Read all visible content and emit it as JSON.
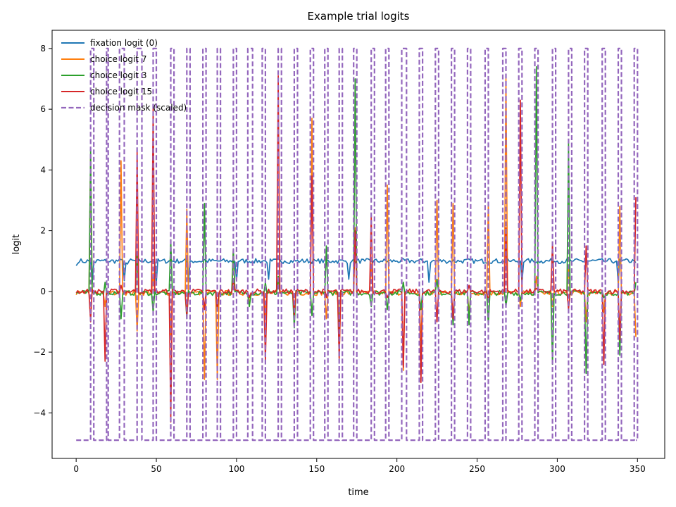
{
  "chart_data": {
    "type": "line",
    "title": "Example trial logits",
    "xlabel": "time",
    "ylabel": "logit",
    "xlim": [
      -15,
      367
    ],
    "ylim": [
      -5.5,
      8.6
    ],
    "xticks": [
      0,
      50,
      100,
      150,
      200,
      250,
      300,
      350
    ],
    "yticks": [
      -4,
      -2,
      0,
      2,
      4,
      6,
      8
    ],
    "grid": false,
    "legend_position": "top-left",
    "colors": {
      "fixation": "#1f77b4",
      "choice7": "#ff7f0e",
      "choice3": "#2ca02c",
      "choice15": "#d62728",
      "mask": "#9467bd"
    },
    "series": [
      {
        "name": "fixation logit (0)",
        "color": "#1f77b4",
        "style": "solid",
        "baseline": 1.0,
        "points": [
          [
            0,
            0.85
          ],
          [
            2,
            0.97
          ],
          [
            5,
            0.95
          ],
          [
            8,
            1.0
          ],
          [
            10,
            0.25
          ],
          [
            12,
            0.95
          ],
          [
            20,
            0.98
          ],
          [
            28,
            1.05
          ],
          [
            30,
            0.35
          ],
          [
            32,
            0.9
          ],
          [
            40,
            1.0
          ],
          [
            48,
            1.0
          ],
          [
            50,
            0.3
          ],
          [
            52,
            1.0
          ],
          [
            60,
            1.0
          ],
          [
            69,
            1.0
          ],
          [
            70,
            0.25
          ],
          [
            72,
            1.0
          ],
          [
            80,
            1.05
          ],
          [
            90,
            1.0
          ],
          [
            98,
            1.05
          ],
          [
            100,
            0.35
          ],
          [
            102,
            1.0
          ],
          [
            110,
            1.0
          ],
          [
            118,
            1.0
          ],
          [
            120,
            0.4
          ],
          [
            122,
            1.0
          ],
          [
            130,
            1.0
          ],
          [
            140,
            1.0
          ],
          [
            150,
            1.0
          ],
          [
            160,
            1.0
          ],
          [
            168,
            1.0
          ],
          [
            170,
            0.4
          ],
          [
            172,
            1.0
          ],
          [
            180,
            1.0
          ],
          [
            190,
            1.0
          ],
          [
            200,
            1.0
          ],
          [
            210,
            1.0
          ],
          [
            219,
            1.0
          ],
          [
            220,
            0.3
          ],
          [
            222,
            1.0
          ],
          [
            230,
            1.0
          ],
          [
            240,
            1.0
          ],
          [
            250,
            1.0
          ],
          [
            260,
            1.0
          ],
          [
            270,
            1.0
          ],
          [
            277,
            1.0
          ],
          [
            278,
            0.3
          ],
          [
            280,
            1.0
          ],
          [
            290,
            1.0
          ],
          [
            300,
            1.0
          ],
          [
            310,
            1.0
          ],
          [
            320,
            1.0
          ],
          [
            330,
            1.0
          ],
          [
            337,
            1.0
          ],
          [
            338,
            0.25
          ],
          [
            340,
            1.0
          ],
          [
            348,
            1.0
          ],
          [
            349,
            0.95
          ]
        ]
      },
      {
        "name": "choice logit 7",
        "color": "#ff7f0e",
        "style": "solid",
        "baseline": -0.05,
        "points": [
          [
            9,
            4.5
          ],
          [
            18,
            -0.5
          ],
          [
            28,
            4.3
          ],
          [
            38,
            -1.3
          ],
          [
            48,
            0.6
          ],
          [
            59,
            -1.5
          ],
          [
            69,
            2.7
          ],
          [
            80,
            -2.9
          ],
          [
            88,
            -2.9
          ],
          [
            98,
            1.4
          ],
          [
            108,
            -0.4
          ],
          [
            118,
            -0.8
          ],
          [
            126,
            0.4
          ],
          [
            136,
            -0.7
          ],
          [
            147,
            5.7
          ],
          [
            156,
            -0.9
          ],
          [
            164,
            -2.2
          ],
          [
            174,
            2.1
          ],
          [
            184,
            0.9
          ],
          [
            194,
            3.5
          ],
          [
            204,
            -2.6
          ],
          [
            215,
            -1.8
          ],
          [
            225,
            3.0
          ],
          [
            235,
            2.9
          ],
          [
            245,
            -0.8
          ],
          [
            257,
            2.9
          ],
          [
            268,
            7.0
          ],
          [
            277,
            -0.5
          ],
          [
            287,
            0.5
          ],
          [
            297,
            -0.5
          ],
          [
            307,
            0.8
          ],
          [
            318,
            -1.0
          ],
          [
            329,
            -0.7
          ],
          [
            339,
            2.8
          ],
          [
            349,
            -1.5
          ]
        ]
      },
      {
        "name": "choice logit 3",
        "color": "#2ca02c",
        "style": "solid",
        "baseline": -0.05,
        "points": [
          [
            9,
            4.7
          ],
          [
            18,
            0.3
          ],
          [
            28,
            -0.9
          ],
          [
            38,
            1.3
          ],
          [
            48,
            -0.7
          ],
          [
            59,
            1.7
          ],
          [
            69,
            -0.9
          ],
          [
            80,
            2.9
          ],
          [
            88,
            -0.6
          ],
          [
            98,
            1.4
          ],
          [
            108,
            -0.5
          ],
          [
            118,
            0.3
          ],
          [
            126,
            0.5
          ],
          [
            136,
            -1.2
          ],
          [
            147,
            -0.8
          ],
          [
            156,
            1.5
          ],
          [
            164,
            -1.3
          ],
          [
            174,
            7.0
          ],
          [
            184,
            -0.5
          ],
          [
            194,
            -0.6
          ],
          [
            204,
            0.3
          ],
          [
            215,
            -0.6
          ],
          [
            225,
            0.4
          ],
          [
            235,
            -1.1
          ],
          [
            245,
            -1.1
          ],
          [
            257,
            -1.1
          ],
          [
            268,
            -0.5
          ],
          [
            277,
            -0.3
          ],
          [
            287,
            7.4
          ],
          [
            297,
            -2.4
          ],
          [
            307,
            4.9
          ],
          [
            318,
            -2.7
          ],
          [
            329,
            -0.2
          ],
          [
            339,
            -2.1
          ],
          [
            349,
            0.3
          ]
        ]
      },
      {
        "name": "choice logit 15",
        "color": "#d62728",
        "style": "solid",
        "baseline": 0.0,
        "points": [
          [
            9,
            -1.0
          ],
          [
            18,
            -2.3
          ],
          [
            28,
            0.2
          ],
          [
            38,
            4.6
          ],
          [
            48,
            6.1
          ],
          [
            59,
            -4.3
          ],
          [
            69,
            -0.8
          ],
          [
            80,
            -0.6
          ],
          [
            88,
            -0.6
          ],
          [
            98,
            0.4
          ],
          [
            108,
            -0.2
          ],
          [
            118,
            -2.3
          ],
          [
            126,
            7.1
          ],
          [
            136,
            -0.8
          ],
          [
            147,
            3.8
          ],
          [
            156,
            -0.2
          ],
          [
            164,
            -2.2
          ],
          [
            174,
            2.0
          ],
          [
            184,
            2.5
          ],
          [
            194,
            -0.2
          ],
          [
            204,
            -2.5
          ],
          [
            215,
            -3.0
          ],
          [
            225,
            -1.0
          ],
          [
            235,
            -0.9
          ],
          [
            245,
            0.2
          ],
          [
            257,
            -0.3
          ],
          [
            268,
            2.1
          ],
          [
            277,
            6.3
          ],
          [
            287,
            0.1
          ],
          [
            297,
            1.6
          ],
          [
            307,
            -0.6
          ],
          [
            318,
            1.5
          ],
          [
            329,
            -2.4
          ],
          [
            339,
            -1.6
          ],
          [
            349,
            3.1
          ]
        ]
      },
      {
        "name": "decision mask (scaled)",
        "color": "#9467bd",
        "style": "dashed",
        "low": -4.9,
        "high": 8.0,
        "pulses": [
          [
            9,
            11
          ],
          [
            19,
            20
          ],
          [
            27,
            30
          ],
          [
            38,
            41
          ],
          [
            48,
            50
          ],
          [
            59,
            61
          ],
          [
            69,
            71
          ],
          [
            79,
            81
          ],
          [
            88,
            90
          ],
          [
            98,
            100
          ],
          [
            107,
            110
          ],
          [
            116,
            118
          ],
          [
            126,
            128
          ],
          [
            136,
            138
          ],
          [
            146,
            148
          ],
          [
            155,
            157
          ],
          [
            164,
            166
          ],
          [
            173,
            175
          ],
          [
            184,
            186
          ],
          [
            193,
            195
          ],
          [
            203,
            206
          ],
          [
            214,
            216
          ],
          [
            224,
            226
          ],
          [
            234,
            236
          ],
          [
            244,
            246
          ],
          [
            255,
            257
          ],
          [
            266,
            268
          ],
          [
            276,
            278
          ],
          [
            286,
            288
          ],
          [
            297,
            299
          ],
          [
            307,
            309
          ],
          [
            317,
            319
          ],
          [
            328,
            330
          ],
          [
            338,
            340
          ],
          [
            348,
            350
          ]
        ]
      }
    ]
  }
}
